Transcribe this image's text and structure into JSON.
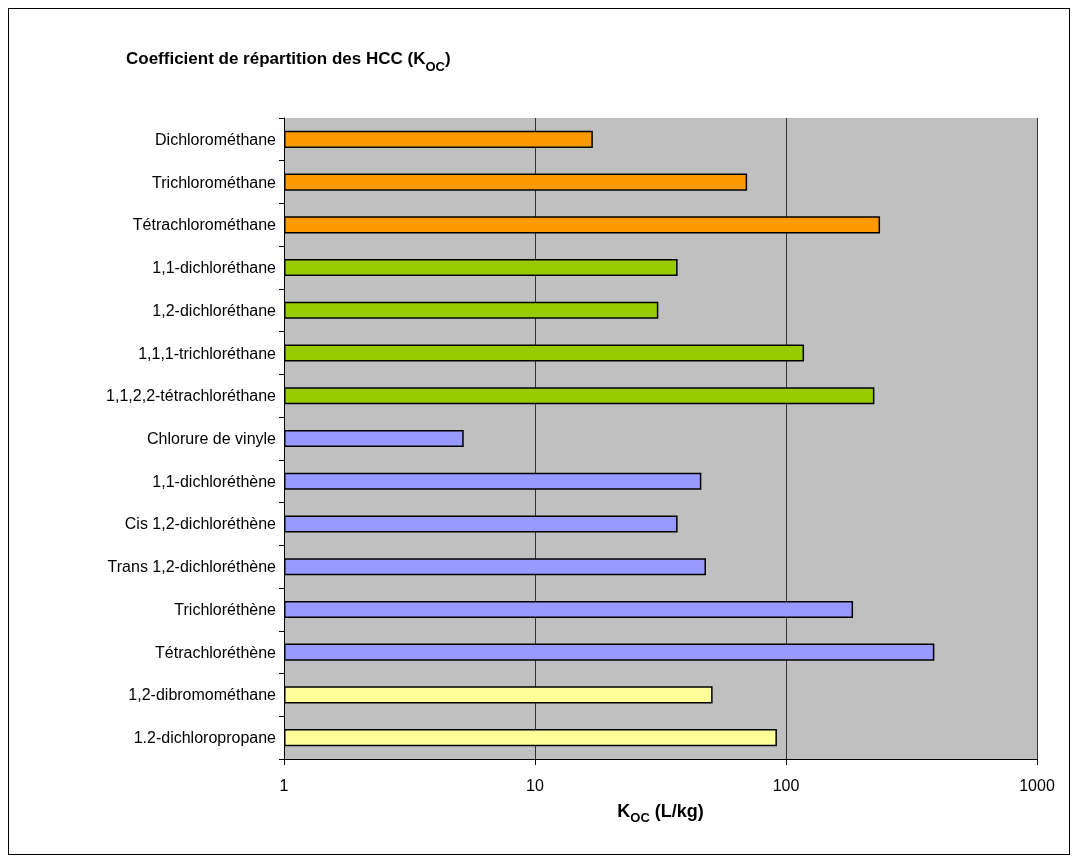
{
  "chart_data": {
    "type": "bar",
    "orientation": "horizontal",
    "title": "Coefficient de répartition des HCC (K$_{OC}$)",
    "xlabel": "K$_{OC}$ (L/kg)",
    "categories": [
      "Dichlorométhane",
      "Trichlorométhane",
      "Tétrachlorométhane",
      "1,1-dichloréthane",
      "1,2-dichloréthane",
      "1,1,1-trichloréthane",
      "1,1,2,2-tétrachloréthane",
      "Chlorure de vinyle",
      "1,1-dichloréthène",
      "Cis 1,2-dichloréthène",
      "Trans 1,2-dichloréthène",
      "Trichloréthène",
      "Tétrachloréthène",
      "1,2-dibromométhane",
      "1.2-dichloropropane"
    ],
    "values": [
      17,
      70,
      237,
      37,
      31,
      118,
      225,
      5.2,
      46,
      37,
      48,
      185,
      390,
      51,
      92
    ],
    "colors": [
      "#ff9900",
      "#ff9900",
      "#ff9900",
      "#99cc00",
      "#99cc00",
      "#99cc00",
      "#99cc00",
      "#9999ff",
      "#9999ff",
      "#9999ff",
      "#9999ff",
      "#9999ff",
      "#9999ff",
      "#ffff99",
      "#ffff99"
    ],
    "log": "x",
    "xlim": [
      1,
      1000
    ],
    "xticks": [
      1,
      10,
      100,
      1000
    ],
    "grid": "x"
  }
}
